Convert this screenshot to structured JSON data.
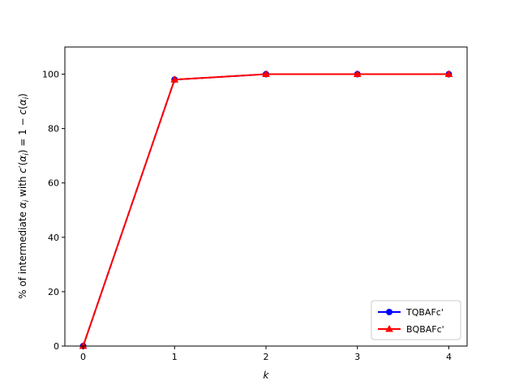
{
  "chart_data": {
    "type": "line",
    "x": [
      0,
      1,
      2,
      3,
      4
    ],
    "xticks": [
      "0",
      "1",
      "2",
      "3",
      "4"
    ],
    "yticks": [
      "0",
      "20",
      "40",
      "60",
      "80",
      "100"
    ],
    "xlim": [
      -0.2,
      4.2
    ],
    "ylim": [
      0,
      110
    ],
    "xlabel": "k",
    "ylabel_prefix": "% of intermediate ",
    "ylabel_math": "α",
    "ylabel_sub": "i",
    "ylabel_mid": " with ",
    "ylabel_c": "c",
    "ylabel_prime": "′(",
    "ylabel_eq": ") = 1 − ",
    "ylabel_end": ")",
    "series": [
      {
        "name": "TQBAFc'",
        "color": "#0000ff",
        "marker": "circle",
        "values": [
          0,
          98,
          100,
          100,
          100
        ]
      },
      {
        "name": "BQBAFc'",
        "color": "#ff0000",
        "marker": "triangle",
        "values": [
          0,
          98,
          100,
          100,
          100
        ]
      }
    ],
    "legend_position": "lower-right",
    "grid": false
  }
}
